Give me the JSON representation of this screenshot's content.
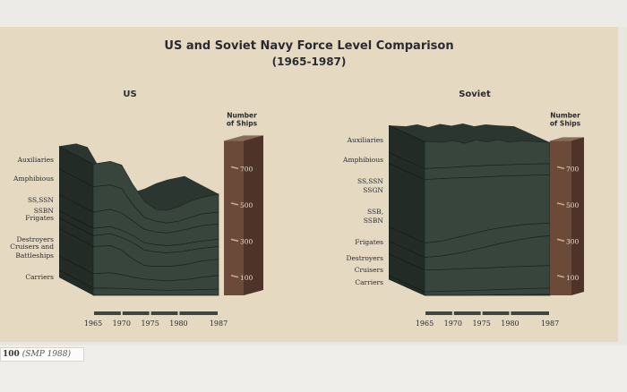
{
  "figure": {
    "title_line1": "US and Soviet Navy Force Level Comparison",
    "title_line2": "(1965-1987)",
    "caption_page": "100",
    "caption_source": "(SMP 1988)"
  },
  "colors": {
    "background": "#e6d9c1",
    "stack_front": "#38453c",
    "stack_top": "#2b3630",
    "stack_side": "#222b26",
    "scale_bar_front": "#6b4a3a",
    "scale_bar_side": "#4e3428",
    "scale_bar_top": "#8a6a58",
    "timeline": "#3d4640",
    "text": "#2a2a32"
  },
  "chart_data": [
    {
      "type": "area",
      "panel": "US",
      "title": "US",
      "ylabel": "Number of Ships",
      "x": [
        1965,
        1968,
        1970,
        1972,
        1974,
        1976,
        1978,
        1980,
        1982,
        1984,
        1987
      ],
      "x_ticks": [
        "1965",
        "1970",
        "1975",
        "1980",
        "1987"
      ],
      "y_ticks": [
        100,
        300,
        500,
        700
      ],
      "ylim": [
        0,
        880
      ],
      "categories": [
        "Carriers",
        "Cruisers and Battleships",
        "Destroyers",
        "Frigates",
        "SSBN",
        "SS,SSN",
        "Amphibious",
        "Auxiliaries"
      ],
      "cumulative_top": [
        [
          40,
          40,
          38,
          35,
          32,
          30,
          28,
          30,
          30,
          32,
          35
        ],
        [
          120,
          125,
          115,
          100,
          90,
          85,
          80,
          85,
          90,
          100,
          110
        ],
        [
          270,
          275,
          250,
          200,
          165,
          160,
          160,
          165,
          175,
          190,
          200
        ],
        [
          330,
          340,
          320,
          290,
          250,
          240,
          235,
          240,
          250,
          260,
          270
        ],
        [
          370,
          380,
          360,
          330,
          290,
          280,
          275,
          280,
          290,
          300,
          310
        ],
        [
          460,
          475,
          455,
          410,
          365,
          350,
          345,
          355,
          370,
          385,
          395
        ],
        [
          600,
          610,
          590,
          500,
          430,
          410,
          400,
          410,
          430,
          450,
          460
        ],
        [
          725,
          740,
          720,
          610,
          520,
          475,
          470,
          490,
          520,
          540,
          560
        ]
      ]
    },
    {
      "type": "area",
      "panel": "Soviet",
      "title": "Soviet",
      "ylabel": "Number of Ships",
      "x": [
        1965,
        1968,
        1970,
        1972,
        1974,
        1976,
        1978,
        1980,
        1982,
        1984,
        1987
      ],
      "x_ticks": [
        "1965",
        "1970",
        "1975",
        "1980",
        "1987"
      ],
      "y_ticks": [
        100,
        300,
        500,
        700
      ],
      "ylim": [
        0,
        880
      ],
      "categories": [
        "Carriers",
        "Cruisers",
        "Destroyers",
        "Frigates",
        "SSB, SSBN",
        "SS,SSN SSGN",
        "Amphibious",
        "Auxiliaries"
      ],
      "cumulative_top": [
        [
          0,
          0,
          0,
          0,
          1,
          2,
          3,
          4,
          4,
          5,
          6
        ],
        [
          20,
          22,
          24,
          26,
          28,
          30,
          32,
          34,
          36,
          38,
          40
        ],
        [
          140,
          142,
          145,
          148,
          150,
          152,
          155,
          158,
          160,
          162,
          165
        ],
        [
          210,
          218,
          228,
          240,
          255,
          270,
          285,
          298,
          310,
          320,
          330
        ],
        [
          290,
          300,
          315,
          330,
          345,
          360,
          372,
          382,
          390,
          395,
          400
        ],
        [
          640,
          645,
          648,
          650,
          652,
          655,
          658,
          660,
          662,
          664,
          665
        ],
        [
          700,
          705,
          708,
          712,
          715,
          718,
          720,
          722,
          724,
          726,
          728
        ],
        [
          850,
          845,
          855,
          840,
          858,
          848,
          860,
          845,
          855,
          850,
          845
        ]
      ]
    }
  ]
}
